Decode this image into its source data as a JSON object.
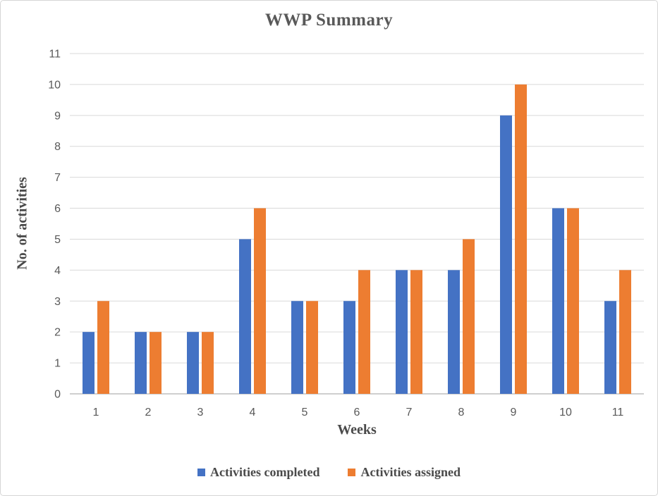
{
  "chart_data": {
    "type": "bar",
    "title": "WWP Summary",
    "xlabel": "Weeks",
    "ylabel": "No. of activities",
    "categories": [
      "1",
      "2",
      "3",
      "4",
      "5",
      "6",
      "7",
      "8",
      "9",
      "10",
      "11"
    ],
    "series": [
      {
        "name": "Activities completed",
        "color": "#4472C4",
        "values": [
          2,
          2,
          2,
          5,
          3,
          3,
          4,
          4,
          9,
          6,
          3
        ]
      },
      {
        "name": "Activities assigned",
        "color": "#ED7D31",
        "values": [
          3,
          2,
          2,
          6,
          3,
          4,
          4,
          5,
          10,
          6,
          4
        ]
      }
    ],
    "ylim": [
      0,
      11
    ],
    "ytick_step": 1,
    "yticks": [
      0,
      1,
      2,
      3,
      4,
      5,
      6,
      7,
      8,
      9,
      10,
      11
    ],
    "grid": true,
    "legend_position": "bottom",
    "colors": {
      "gridline": "#D9D9D9",
      "axis_line": "#BFBFBF",
      "tick_text": "#595959",
      "title_text": "#595959",
      "axis_title_text": "#4a4a4a"
    }
  }
}
